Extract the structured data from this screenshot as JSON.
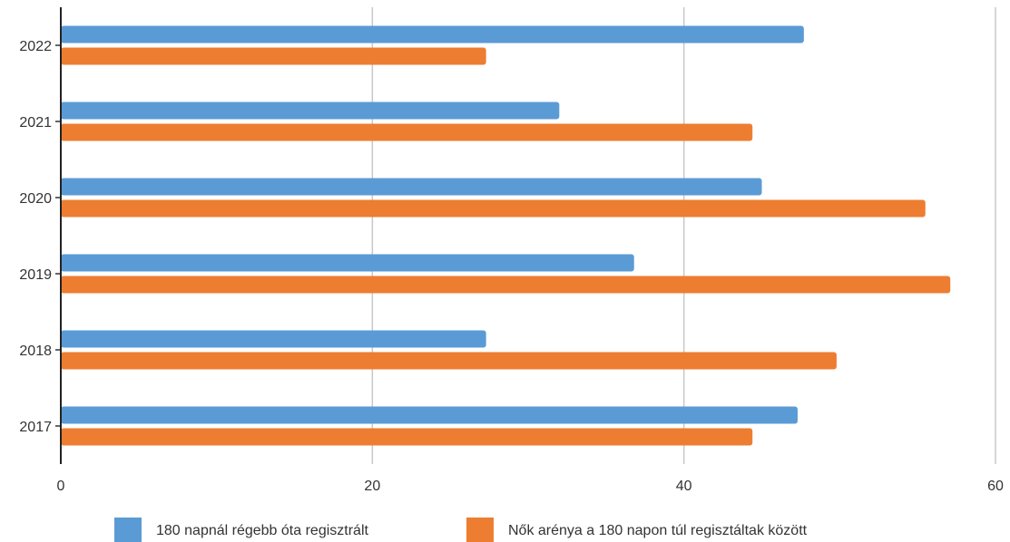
{
  "chart_data": {
    "type": "bar",
    "orientation": "horizontal",
    "title": "",
    "xlabel": "",
    "ylabel": "",
    "xlim": [
      0,
      60
    ],
    "x_ticks": [
      0,
      20,
      40,
      60
    ],
    "grid": "vertical",
    "legend_position": "bottom",
    "categories": [
      "2022",
      "2021",
      "2020",
      "2019",
      "2018",
      "2017"
    ],
    "series": [
      {
        "name": "180 napnál régebb óta regisztrált",
        "color": "#5B9BD5",
        "values": [
          47.7,
          32.0,
          45.0,
          36.8,
          27.3,
          47.3
        ]
      },
      {
        "name": "Nők arénya a 180 napon túl regisztáltak között",
        "color": "#ED7D31",
        "values": [
          27.3,
          44.4,
          55.5,
          57.1,
          49.8,
          44.4
        ]
      }
    ]
  }
}
